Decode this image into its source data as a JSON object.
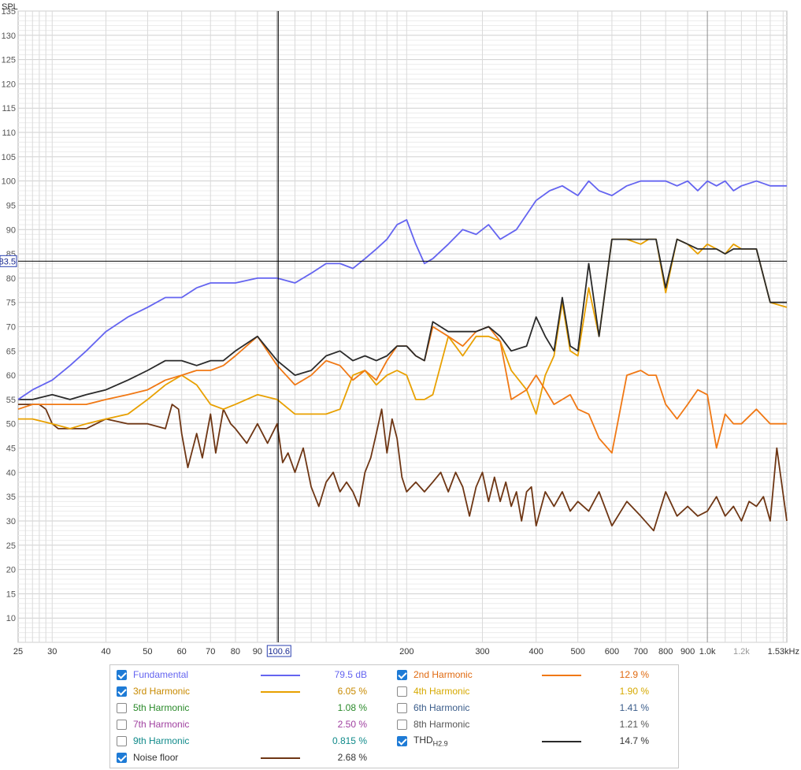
{
  "chart_data": {
    "type": "line",
    "x_scale": "log",
    "ylabel": "SPL",
    "xlim": [
      25,
      1530
    ],
    "ylim": [
      5,
      135
    ],
    "y_ticks": [
      10,
      15,
      20,
      25,
      30,
      35,
      40,
      45,
      50,
      55,
      60,
      65,
      70,
      75,
      80,
      85,
      90,
      95,
      100,
      105,
      110,
      115,
      120,
      125,
      130,
      135
    ],
    "x_tick_labels": [
      {
        "v": 25,
        "t": "25"
      },
      {
        "v": 30,
        "t": "30"
      },
      {
        "v": 40,
        "t": "40"
      },
      {
        "v": 50,
        "t": "50"
      },
      {
        "v": 60,
        "t": "60"
      },
      {
        "v": 70,
        "t": "70"
      },
      {
        "v": 80,
        "t": "80"
      },
      {
        "v": 90,
        "t": "90"
      },
      {
        "v": 200,
        "t": "200"
      },
      {
        "v": 300,
        "t": "300"
      },
      {
        "v": 400,
        "t": "400"
      },
      {
        "v": 500,
        "t": "500"
      },
      {
        "v": 600,
        "t": "600"
      },
      {
        "v": 700,
        "t": "700"
      },
      {
        "v": 800,
        "t": "800"
      },
      {
        "v": 900,
        "t": "900"
      },
      {
        "v": 1000,
        "t": "1.0k"
      },
      {
        "v": 1200,
        "t": "1.2k"
      },
      {
        "v": 1530,
        "t": "1.53kHz"
      }
    ],
    "cursor": {
      "x": 100.6,
      "x_label": "100.6",
      "y": 83.5,
      "y_label": "83.5"
    },
    "series": [
      {
        "name": "Fundamental",
        "color": "#6464f0",
        "x": [
          25,
          27,
          30,
          33,
          36,
          40,
          45,
          50,
          55,
          60,
          65,
          70,
          75,
          80,
          90,
          100,
          110,
          120,
          130,
          140,
          150,
          160,
          170,
          180,
          190,
          200,
          210,
          220,
          230,
          250,
          270,
          290,
          310,
          330,
          360,
          400,
          430,
          460,
          500,
          530,
          560,
          600,
          650,
          700,
          750,
          800,
          850,
          900,
          950,
          1000,
          1050,
          1100,
          1150,
          1200,
          1300,
          1400,
          1530
        ],
        "y": [
          55,
          57,
          59,
          62,
          65,
          69,
          72,
          74,
          76,
          76,
          78,
          79,
          79,
          79,
          80,
          80,
          79,
          81,
          83,
          83,
          82,
          84,
          86,
          88,
          91,
          92,
          87,
          83,
          84,
          87,
          90,
          89,
          91,
          88,
          90,
          96,
          98,
          99,
          97,
          100,
          98,
          97,
          99,
          100,
          100,
          100,
          99,
          100,
          98,
          100,
          99,
          100,
          98,
          99,
          100,
          99,
          99
        ]
      },
      {
        "name": "2nd Harmonic",
        "color": "#f07814",
        "x": [
          25,
          27,
          30,
          33,
          36,
          40,
          45,
          50,
          55,
          60,
          65,
          70,
          75,
          80,
          90,
          100,
          110,
          120,
          130,
          140,
          150,
          160,
          170,
          180,
          190,
          200,
          210,
          220,
          230,
          250,
          270,
          290,
          310,
          330,
          350,
          380,
          400,
          420,
          440,
          460,
          480,
          500,
          530,
          560,
          600,
          650,
          700,
          730,
          760,
          800,
          850,
          900,
          950,
          1000,
          1050,
          1100,
          1150,
          1200,
          1300,
          1400,
          1530
        ],
        "y": [
          53,
          54,
          54,
          54,
          54,
          55,
          56,
          57,
          59,
          60,
          61,
          61,
          62,
          64,
          68,
          62,
          58,
          60,
          63,
          62,
          59,
          61,
          59,
          63,
          66,
          66,
          64,
          63,
          70,
          68,
          66,
          69,
          70,
          67,
          55,
          57,
          60,
          57,
          54,
          55,
          56,
          53,
          52,
          47,
          44,
          60,
          61,
          60,
          60,
          54,
          51,
          54,
          57,
          56,
          45,
          52,
          50,
          50,
          53,
          50,
          50
        ]
      },
      {
        "name": "3rd Harmonic",
        "color": "#e8a000",
        "x": [
          25,
          27,
          30,
          33,
          36,
          40,
          45,
          50,
          55,
          60,
          65,
          70,
          75,
          80,
          90,
          100,
          110,
          120,
          130,
          140,
          150,
          160,
          170,
          180,
          190,
          200,
          210,
          220,
          230,
          250,
          270,
          290,
          310,
          330,
          350,
          380,
          400,
          420,
          440,
          460,
          480,
          500,
          530,
          560,
          600,
          650,
          700,
          730,
          760,
          800,
          850,
          900,
          950,
          1000,
          1050,
          1100,
          1150,
          1200,
          1300,
          1400,
          1530
        ],
        "y": [
          51,
          51,
          50,
          49,
          50,
          51,
          52,
          55,
          58,
          60,
          58,
          54,
          53,
          54,
          56,
          55,
          52,
          52,
          52,
          53,
          60,
          61,
          58,
          60,
          61,
          60,
          55,
          55,
          56,
          68,
          64,
          68,
          68,
          67,
          61,
          57,
          52,
          60,
          64,
          75,
          65,
          64,
          78,
          68,
          88,
          88,
          87,
          88,
          88,
          77,
          88,
          87,
          85,
          87,
          86,
          85,
          87,
          86,
          86,
          75,
          74
        ]
      },
      {
        "name": "THD H2:9",
        "color": "#2a2a2a",
        "x": [
          25,
          27,
          30,
          33,
          36,
          40,
          45,
          50,
          55,
          60,
          65,
          70,
          75,
          80,
          90,
          100,
          110,
          120,
          130,
          140,
          150,
          160,
          170,
          180,
          190,
          200,
          210,
          220,
          230,
          250,
          270,
          290,
          310,
          330,
          350,
          380,
          400,
          420,
          440,
          460,
          480,
          500,
          530,
          560,
          600,
          650,
          700,
          730,
          760,
          800,
          850,
          900,
          950,
          1000,
          1050,
          1100,
          1150,
          1200,
          1300,
          1400,
          1530
        ],
        "y": [
          55,
          55,
          56,
          55,
          56,
          57,
          59,
          61,
          63,
          63,
          62,
          63,
          63,
          65,
          68,
          63,
          60,
          61,
          64,
          65,
          63,
          64,
          63,
          64,
          66,
          66,
          64,
          63,
          71,
          69,
          69,
          69,
          70,
          68,
          65,
          66,
          72,
          68,
          65,
          76,
          66,
          65,
          83,
          68,
          88,
          88,
          88,
          88,
          88,
          78,
          88,
          87,
          86,
          86,
          86,
          85,
          86,
          86,
          86,
          75,
          75
        ]
      },
      {
        "name": "Noise floor",
        "color": "#6e3614",
        "x": [
          25,
          28,
          29,
          30,
          31,
          33,
          36,
          40,
          45,
          50,
          55,
          57,
          59,
          60,
          62,
          65,
          67,
          70,
          72,
          75,
          78,
          80,
          85,
          90,
          95,
          100,
          103,
          106,
          110,
          115,
          120,
          125,
          130,
          135,
          140,
          145,
          150,
          155,
          160,
          165,
          170,
          175,
          180,
          185,
          190,
          195,
          200,
          210,
          220,
          230,
          240,
          250,
          260,
          270,
          280,
          290,
          300,
          310,
          320,
          330,
          340,
          350,
          360,
          370,
          380,
          390,
          400,
          420,
          440,
          460,
          480,
          500,
          530,
          560,
          600,
          650,
          700,
          750,
          800,
          850,
          900,
          950,
          1000,
          1050,
          1100,
          1150,
          1200,
          1250,
          1300,
          1350,
          1400,
          1450,
          1530
        ],
        "y": [
          54,
          54,
          53,
          50,
          49,
          49,
          49,
          51,
          50,
          50,
          49,
          54,
          53,
          48,
          41,
          48,
          43,
          52,
          44,
          53,
          50,
          49,
          46,
          50,
          46,
          50,
          42,
          44,
          40,
          45,
          37,
          33,
          38,
          40,
          36,
          38,
          36,
          33,
          40,
          43,
          48,
          53,
          44,
          51,
          47,
          39,
          36,
          38,
          36,
          38,
          40,
          36,
          40,
          37,
          31,
          37,
          40,
          34,
          39,
          34,
          38,
          33,
          36,
          30,
          36,
          37,
          29,
          36,
          33,
          36,
          32,
          34,
          32,
          36,
          29,
          34,
          31,
          28,
          36,
          31,
          33,
          31,
          32,
          35,
          31,
          33,
          30,
          34,
          33,
          35,
          30,
          45,
          30
        ]
      }
    ]
  },
  "legend": {
    "rows": [
      {
        "label": "Fundamental",
        "value": "79.5 dB",
        "checked": true,
        "color": "#6464f0",
        "label_color": "#6464f0",
        "value_color": "#6464f0"
      },
      {
        "label": "2nd Harmonic",
        "value": "12.9 %",
        "checked": true,
        "color": "#f07814",
        "label_color": "#e06a10",
        "value_color": "#e06a10"
      },
      {
        "label": "3rd Harmonic",
        "value": "6.05 %",
        "checked": true,
        "color": "#e8a000",
        "label_color": "#c88a00",
        "value_color": "#c88a00"
      },
      {
        "label": "4th Harmonic",
        "value": "1.90 %",
        "checked": false,
        "color": "",
        "label_color": "#d6a900",
        "value_color": "#d6a900"
      },
      {
        "label": "5th Harmonic",
        "value": "1.08 %",
        "checked": false,
        "color": "",
        "label_color": "#2b8a2b",
        "value_color": "#2b8a2b"
      },
      {
        "label": "6th Harmonic",
        "value": "1.41 %",
        "checked": false,
        "color": "",
        "label_color": "#3a5c8a",
        "value_color": "#3a5c8a"
      },
      {
        "label": "7th Harmonic",
        "value": "2.50 %",
        "checked": false,
        "color": "",
        "label_color": "#a040a0",
        "value_color": "#a040a0"
      },
      {
        "label": "8th Harmonic",
        "value": "1.21 %",
        "checked": false,
        "color": "",
        "label_color": "#555555",
        "value_color": "#555555"
      },
      {
        "label": "9th Harmonic",
        "value": "0.815 %",
        "checked": false,
        "color": "",
        "label_color": "#108a8a",
        "value_color": "#108a8a"
      },
      {
        "label": "THD",
        "label_sub": "H2.9",
        "value": "14.7 %",
        "checked": true,
        "color": "#2a2a2a",
        "label_color": "#333333",
        "value_color": "#333333"
      },
      {
        "label": "Noise floor",
        "value": "2.68 %",
        "checked": true,
        "color": "#6e3614",
        "label_color": "#333333",
        "value_color": "#333333"
      }
    ]
  }
}
